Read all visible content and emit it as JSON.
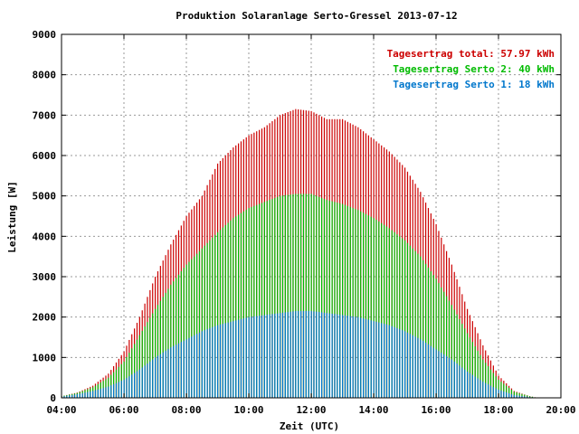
{
  "chart_data": {
    "type": "bar",
    "title": "Produktion Solaranlage Serto-Gressel 2013-07-12",
    "xlabel": "Zeit (UTC)",
    "ylabel": "Leistung [W]",
    "xlim": [
      "04:00",
      "20:00"
    ],
    "ylim": [
      0,
      9000
    ],
    "grid": true,
    "legend_placement": "top-right",
    "x_ticks": [
      "04:00",
      "06:00",
      "08:00",
      "10:00",
      "12:00",
      "14:00",
      "16:00",
      "18:00",
      "20:00"
    ],
    "y_ticks": [
      "0",
      "1000",
      "2000",
      "3000",
      "4000",
      "5000",
      "6000",
      "7000",
      "8000",
      "9000"
    ],
    "legend": [
      {
        "label": "Tagesertrag total: 57.97 kWh",
        "color": "#cc0000"
      },
      {
        "label": "Tagesertrag Serto 2: 40 kWh",
        "color": "#00bb00"
      },
      {
        "label": "Tagesertrag Serto 1: 18 kWh",
        "color": "#0077cc"
      }
    ],
    "sampling_minutes": 5,
    "x_start": "04:00",
    "x_end": "19:15",
    "series": [
      {
        "name": "Tagesertrag total: 57.97 kWh",
        "color": "#cc0000",
        "anchors_x": [
          "04:00",
          "04:30",
          "05:00",
          "05:30",
          "06:00",
          "06:30",
          "07:00",
          "07:30",
          "08:00",
          "08:30",
          "09:00",
          "09:30",
          "10:00",
          "10:30",
          "11:00",
          "11:30",
          "12:00",
          "12:30",
          "13:00",
          "13:30",
          "14:00",
          "14:30",
          "15:00",
          "15:30",
          "16:00",
          "16:30",
          "17:00",
          "17:30",
          "18:00",
          "18:30",
          "19:00",
          "19:15"
        ],
        "anchors_y": [
          40,
          130,
          300,
          600,
          1150,
          2000,
          3000,
          3800,
          4500,
          5000,
          5800,
          6200,
          6500,
          6700,
          7000,
          7150,
          7100,
          6900,
          6900,
          6700,
          6400,
          6100,
          5700,
          5100,
          4300,
          3300,
          2200,
          1300,
          550,
          170,
          40,
          0
        ]
      },
      {
        "name": "Tagesertrag Serto 2: 40 kWh",
        "color": "#00bb00",
        "anchors_x": [
          "04:00",
          "04:30",
          "05:00",
          "05:30",
          "06:00",
          "06:30",
          "07:00",
          "07:30",
          "08:00",
          "08:30",
          "09:00",
          "09:30",
          "10:00",
          "10:30",
          "11:00",
          "11:30",
          "12:00",
          "12:30",
          "13:00",
          "13:30",
          "14:00",
          "14:30",
          "15:00",
          "15:30",
          "16:00",
          "16:30",
          "17:00",
          "17:30",
          "18:00",
          "18:30",
          "19:00",
          "19:15"
        ],
        "anchors_y": [
          40,
          120,
          260,
          500,
          900,
          1550,
          2200,
          2800,
          3300,
          3700,
          4100,
          4450,
          4700,
          4850,
          5000,
          5050,
          5050,
          4900,
          4800,
          4650,
          4450,
          4200,
          3900,
          3500,
          2950,
          2300,
          1600,
          950,
          450,
          150,
          40,
          0
        ]
      },
      {
        "name": "Tagesertrag Serto 1: 18 kWh",
        "color": "#0077cc",
        "anchors_x": [
          "04:00",
          "04:30",
          "05:00",
          "05:30",
          "06:00",
          "06:30",
          "07:00",
          "07:30",
          "08:00",
          "08:30",
          "09:00",
          "09:30",
          "10:00",
          "10:30",
          "11:00",
          "11:30",
          "12:00",
          "12:30",
          "13:00",
          "13:30",
          "14:00",
          "14:30",
          "15:00",
          "15:30",
          "16:00",
          "16:30",
          "17:00",
          "17:30",
          "18:00",
          "18:30",
          "19:00",
          "19:15"
        ],
        "anchors_y": [
          30,
          90,
          170,
          280,
          450,
          700,
          1000,
          1250,
          1450,
          1650,
          1800,
          1900,
          2000,
          2050,
          2100,
          2150,
          2150,
          2100,
          2050,
          2000,
          1900,
          1800,
          1650,
          1450,
          1200,
          950,
          650,
          400,
          200,
          70,
          20,
          0
        ]
      }
    ]
  }
}
